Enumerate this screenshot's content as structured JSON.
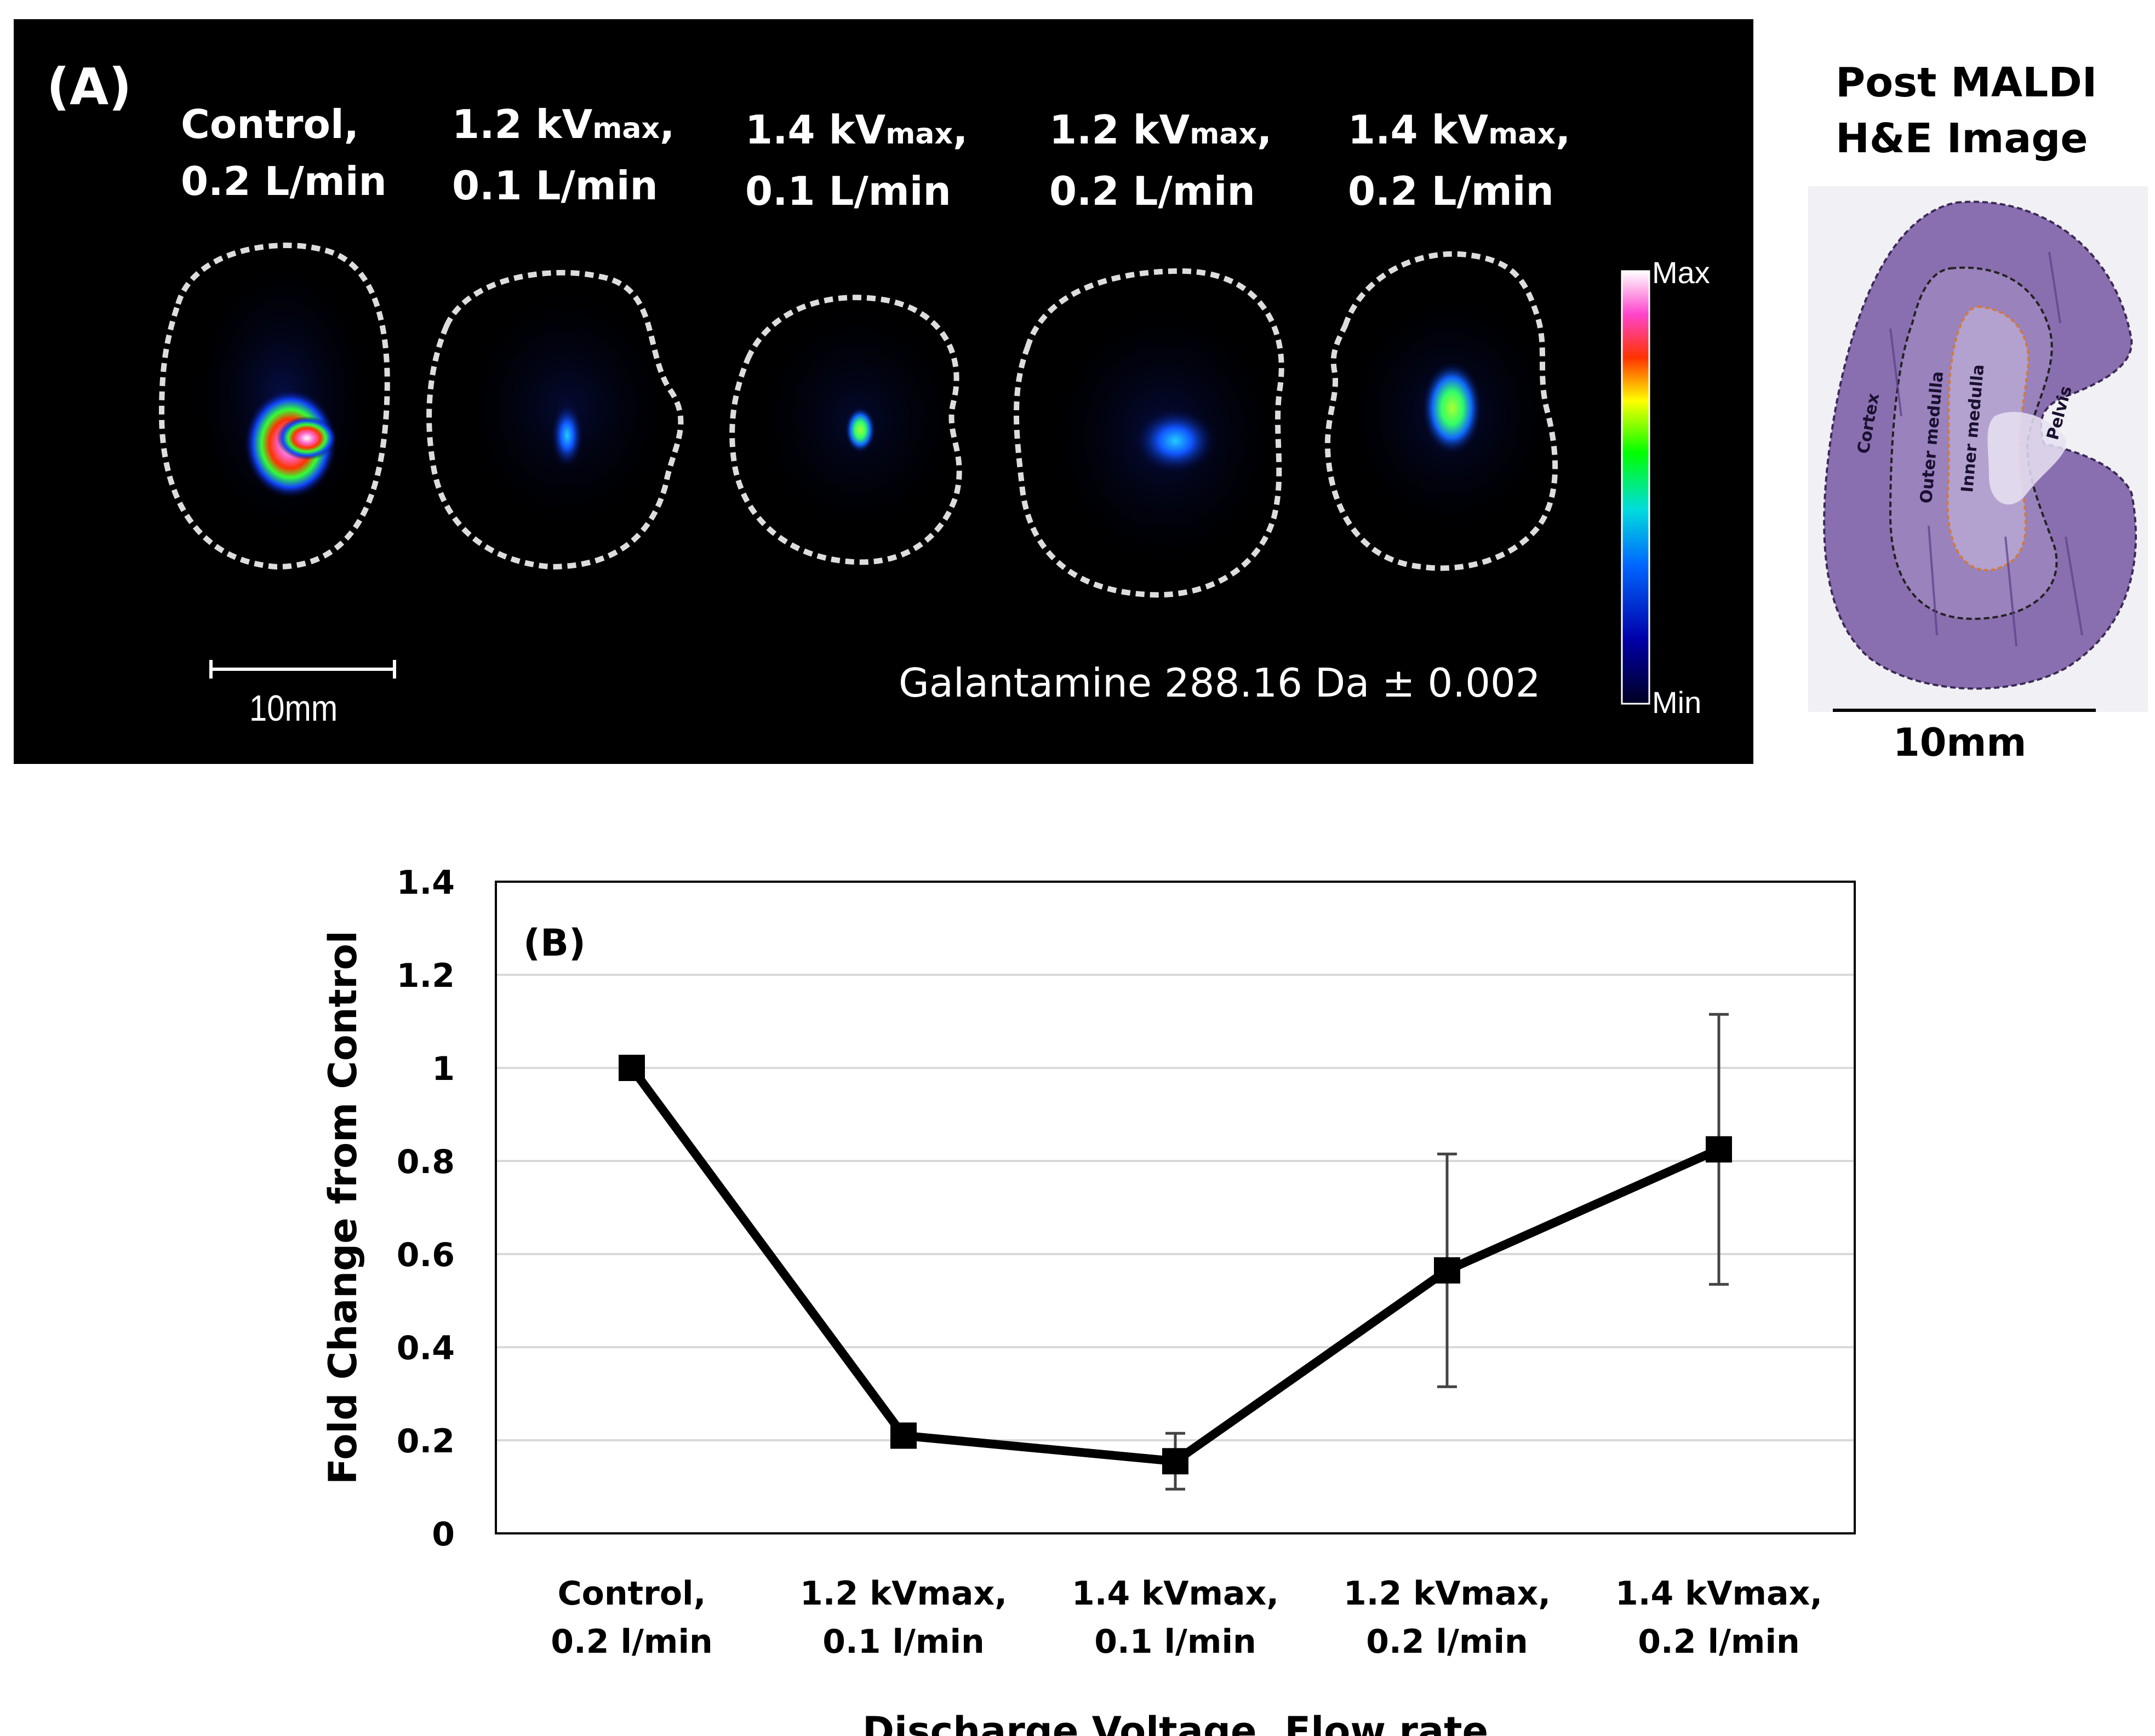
{
  "panel_a": {
    "label": "(A)",
    "conditions": [
      {
        "line1": "Control,",
        "line2": "0.2 L/min"
      },
      {
        "line1_main": "1.2 kV",
        "line1_sub": "max",
        "line1_tail": ",",
        "line2": "0.1 L/min"
      },
      {
        "line1_main": "1.4 kV",
        "line1_sub": "max",
        "line1_tail": ",",
        "line2": "0.1 L/min"
      },
      {
        "line1_main": "1.2 kV",
        "line1_sub": "max",
        "line1_tail": ",",
        "line2": "0.2 L/min"
      },
      {
        "line1_main": "1.4 kV",
        "line1_sub": "max",
        "line1_tail": ",",
        "line2": "0.2 L/min"
      }
    ],
    "scale_bar": "10mm",
    "analyte": "Galantamine 288.16 Da ± 0.002",
    "colorbar": {
      "max_label": "Max",
      "min_label": "Min"
    }
  },
  "he_image": {
    "title_line1": "Post MALDI",
    "title_line2": "H&E Image",
    "regions": [
      "Cortex",
      "Outer medulla",
      "Inner medulla",
      "Pelvis"
    ],
    "scale_bar": "10mm",
    "tissue_color": "#8a6fb0"
  },
  "chart_data": {
    "type": "line",
    "panel_label": "(B)",
    "title": "",
    "xlabel": "Discharge Voltage, Flow rate",
    "ylabel": "Fold Change from Control",
    "categories": [
      [
        "Control,",
        "0.2 l/min"
      ],
      [
        "1.2 kVmax,",
        "0.1 l/min"
      ],
      [
        "1.4 kVmax,",
        "0.1 l/min"
      ],
      [
        "1.2 kVmax,",
        "0.2 l/min"
      ],
      [
        "1.4 kVmax,",
        "0.2 l/min"
      ]
    ],
    "series": [
      {
        "name": "Galantamine",
        "values": [
          1.0,
          0.21,
          0.155,
          0.565,
          0.825
        ],
        "error": [
          0,
          0,
          0.06,
          0.25,
          0.29
        ]
      }
    ],
    "ylim": [
      0,
      1.4
    ],
    "yticks": [
      "0",
      "0.2",
      "0.4",
      "0.6",
      "0.8",
      "1",
      "1.2",
      "1.4"
    ],
    "grid": true,
    "line_color": "#000000",
    "grid_color": "#d9d9d9"
  }
}
